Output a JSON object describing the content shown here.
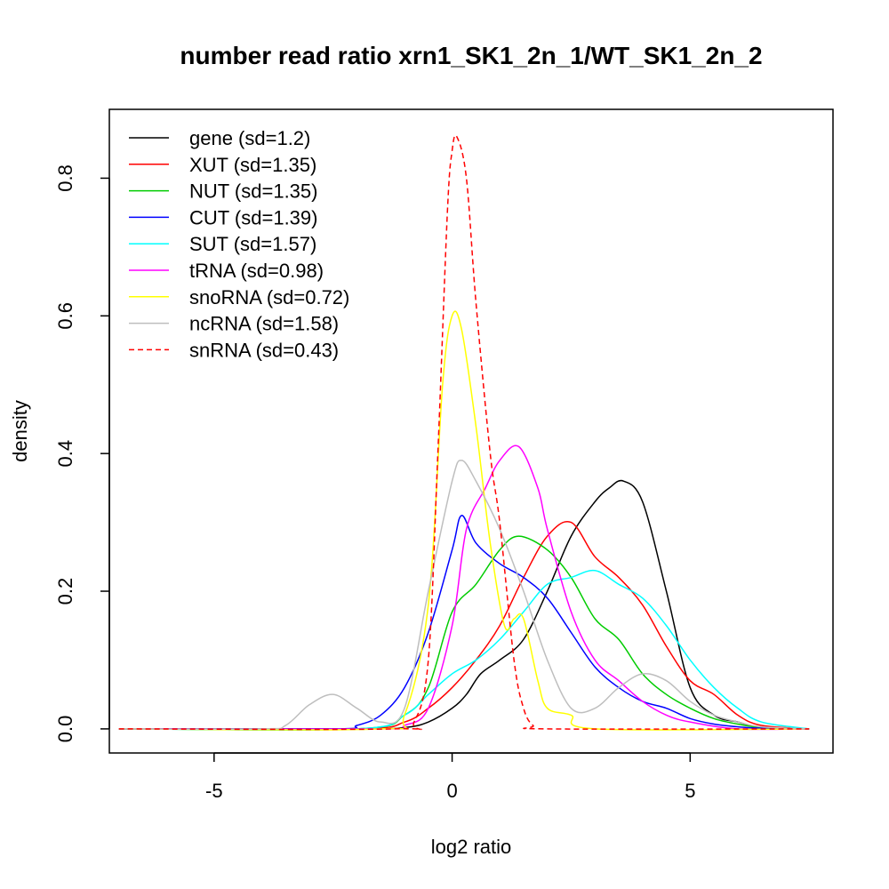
{
  "chart_data": {
    "type": "line",
    "title": "number read ratio xrn1_SK1_2n_1/WT_SK1_2n_2",
    "xlabel": "log2 ratio",
    "ylabel": "density",
    "xlim": [
      -7.2,
      8.0
    ],
    "ylim": [
      -0.035,
      0.9
    ],
    "x_ticks": [
      -5,
      0,
      5
    ],
    "x_tick_labels": [
      "-5",
      "0",
      "5"
    ],
    "y_ticks": [
      0.0,
      0.2,
      0.4,
      0.6,
      0.8
    ],
    "y_tick_labels": [
      "0.0",
      "0.2",
      "0.4",
      "0.6",
      "0.8"
    ],
    "grid": false,
    "legend_position": "top-left",
    "series": [
      {
        "name": "gene (sd=1.2)",
        "color": "#000000",
        "dash": false,
        "x": [
          -7,
          -2,
          -1,
          -0.5,
          0,
          0.3,
          0.6,
          1,
          1.5,
          2,
          2.5,
          3,
          3.3,
          3.6,
          4,
          4.5,
          5,
          5.5,
          6,
          6.5,
          7.5
        ],
        "y": [
          0,
          0,
          0.002,
          0.01,
          0.03,
          0.05,
          0.08,
          0.1,
          0.13,
          0.2,
          0.28,
          0.33,
          0.35,
          0.36,
          0.33,
          0.2,
          0.06,
          0.02,
          0.01,
          0.002,
          0
        ]
      },
      {
        "name": "XUT (sd=1.35)",
        "color": "#ff0000",
        "dash": false,
        "x": [
          -7,
          -2,
          -1,
          -0.5,
          0,
          0.5,
          1,
          1.5,
          2,
          2.5,
          3,
          3.5,
          4,
          4.5,
          5,
          5.5,
          6,
          6.5,
          7.5
        ],
        "y": [
          0,
          0,
          0.01,
          0.03,
          0.06,
          0.1,
          0.15,
          0.22,
          0.28,
          0.3,
          0.25,
          0.22,
          0.18,
          0.12,
          0.07,
          0.05,
          0.02,
          0.005,
          0
        ]
      },
      {
        "name": "NUT (sd=1.35)",
        "color": "#00cc00",
        "dash": false,
        "x": [
          -7,
          -2,
          -1,
          -0.5,
          0,
          0.5,
          1,
          1.4,
          2,
          2.5,
          3,
          3.5,
          4,
          4.5,
          5,
          5.5,
          6,
          6.5,
          7.5
        ],
        "y": [
          0,
          0,
          0.02,
          0.06,
          0.17,
          0.21,
          0.26,
          0.28,
          0.26,
          0.22,
          0.16,
          0.13,
          0.08,
          0.05,
          0.03,
          0.015,
          0.007,
          0.002,
          0
        ]
      },
      {
        "name": "CUT (sd=1.39)",
        "color": "#0000ff",
        "dash": false,
        "x": [
          -7,
          -2.5,
          -2,
          -1.5,
          -1,
          -0.5,
          0,
          0.2,
          0.5,
          1,
          1.5,
          2,
          2.5,
          3,
          3.5,
          4,
          4.5,
          5,
          5.5,
          6,
          6.5,
          7.5
        ],
        "y": [
          0,
          0,
          0.005,
          0.02,
          0.06,
          0.14,
          0.26,
          0.31,
          0.27,
          0.24,
          0.22,
          0.19,
          0.14,
          0.09,
          0.06,
          0.04,
          0.03,
          0.015,
          0.007,
          0.003,
          0.001,
          0
        ]
      },
      {
        "name": "SUT (sd=1.57)",
        "color": "#00ffff",
        "dash": false,
        "x": [
          -7,
          -2,
          -1,
          -0.5,
          0,
          0.5,
          1,
          1.5,
          2,
          2.5,
          3,
          3.5,
          4,
          4.5,
          5,
          5.5,
          6,
          6.5,
          7.5
        ],
        "y": [
          0,
          0,
          0.02,
          0.05,
          0.08,
          0.1,
          0.13,
          0.17,
          0.21,
          0.22,
          0.23,
          0.21,
          0.19,
          0.15,
          0.1,
          0.06,
          0.03,
          0.01,
          0
        ]
      },
      {
        "name": "tRNA (sd=0.98)",
        "color": "#ff00ff",
        "dash": false,
        "x": [
          -7,
          -1.5,
          -1,
          -0.5,
          0,
          0.3,
          0.7,
          1,
          1.4,
          1.8,
          2,
          2.5,
          3,
          3.5,
          4,
          4.5,
          5,
          6,
          7.5
        ],
        "y": [
          0,
          0,
          0.005,
          0.03,
          0.15,
          0.29,
          0.35,
          0.39,
          0.41,
          0.35,
          0.29,
          0.17,
          0.1,
          0.07,
          0.04,
          0.02,
          0.01,
          0,
          0
        ]
      },
      {
        "name": "snoRNA (sd=0.72)",
        "color": "#ffff00",
        "dash": false,
        "x": [
          -7,
          -1.5,
          -1,
          -0.5,
          -0.2,
          0,
          0.2,
          0.5,
          0.8,
          1.1,
          1.3,
          1.5,
          1.8,
          2,
          2.5,
          3,
          7.5
        ],
        "y": [
          0,
          0,
          0.02,
          0.18,
          0.5,
          0.6,
          0.58,
          0.44,
          0.27,
          0.15,
          0.16,
          0.16,
          0.07,
          0.03,
          0.02,
          0,
          0
        ]
      },
      {
        "name": "ncRNA (sd=1.58)",
        "color": "#bebebe",
        "dash": false,
        "x": [
          -7,
          -4,
          -3.5,
          -3,
          -2.5,
          -2,
          -1.5,
          -1,
          -0.5,
          0,
          0.2,
          0.5,
          1,
          1.5,
          2,
          2.5,
          3,
          3.5,
          4,
          4.5,
          5,
          5.5,
          6,
          6.5,
          7.5
        ],
        "y": [
          0,
          0,
          0.005,
          0.035,
          0.05,
          0.03,
          0.01,
          0.03,
          0.2,
          0.36,
          0.39,
          0.36,
          0.29,
          0.2,
          0.1,
          0.03,
          0.03,
          0.06,
          0.08,
          0.07,
          0.04,
          0.02,
          0.01,
          0.003,
          0
        ]
      },
      {
        "name": "snRNA (sd=0.43)",
        "color": "#ff0000",
        "dash": true,
        "x": [
          -7,
          -1.2,
          -0.8,
          -0.5,
          -0.3,
          -0.1,
          0,
          0.1,
          0.3,
          0.5,
          0.8,
          1,
          1.3,
          1.5,
          1.7,
          2,
          7.5
        ],
        "y": [
          0,
          0,
          0.01,
          0.1,
          0.4,
          0.75,
          0.84,
          0.86,
          0.8,
          0.62,
          0.4,
          0.3,
          0.1,
          0.03,
          0.005,
          0,
          0
        ]
      }
    ]
  }
}
